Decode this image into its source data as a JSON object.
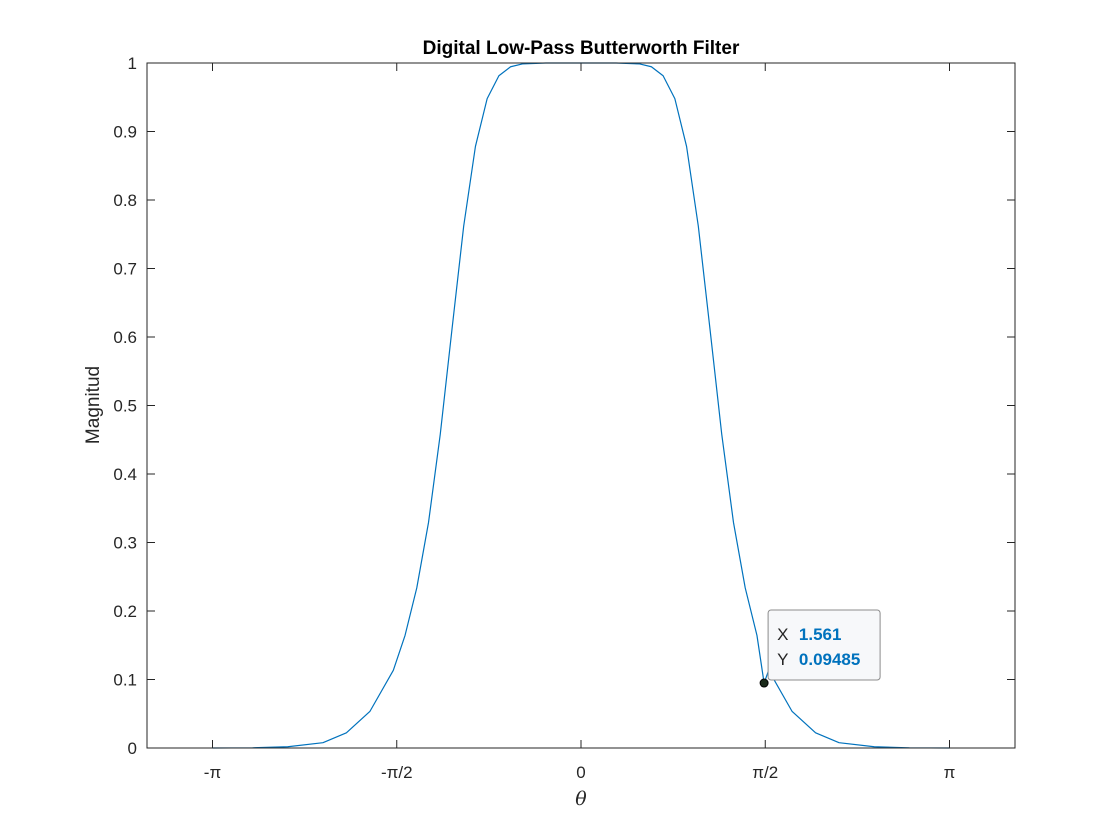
{
  "chart_data": {
    "type": "line",
    "title": "Digital Low-Pass Butterworth Filter",
    "xlabel": "θ",
    "ylabel": "Magnitud",
    "xlim": [
      -3.7,
      3.7
    ],
    "ylim": [
      0,
      1
    ],
    "xticks": [
      {
        "value": -3.14159,
        "label": "-π"
      },
      {
        "value": -1.5708,
        "label": "-π/2"
      },
      {
        "value": 0,
        "label": "0"
      },
      {
        "value": 1.5708,
        "label": "π/2"
      },
      {
        "value": 3.14159,
        "label": "π"
      }
    ],
    "yticks": [
      {
        "value": 0,
        "label": "0"
      },
      {
        "value": 0.1,
        "label": "0.1"
      },
      {
        "value": 0.2,
        "label": "0.2"
      },
      {
        "value": 0.3,
        "label": "0.3"
      },
      {
        "value": 0.4,
        "label": "0.4"
      },
      {
        "value": 0.5,
        "label": "0.5"
      },
      {
        "value": 0.6,
        "label": "0.6"
      },
      {
        "value": 0.7,
        "label": "0.7"
      },
      {
        "value": 0.8,
        "label": "0.8"
      },
      {
        "value": 0.9,
        "label": "0.9"
      },
      {
        "value": 1,
        "label": "1"
      }
    ],
    "grid": false,
    "series": [
      {
        "color": "#0072BD",
        "x": [
          -3.1416,
          -2.8,
          -2.5,
          -2.2,
          -2.0,
          -1.8,
          -1.6,
          -1.5,
          -1.4,
          -1.3,
          -1.2,
          -1.1,
          -1.0,
          -0.9,
          -0.8,
          -0.7,
          -0.6,
          -0.5,
          -0.3,
          0,
          0.3,
          0.5,
          0.6,
          0.7,
          0.8,
          0.9,
          1.0,
          1.1,
          1.2,
          1.3,
          1.4,
          1.5,
          1.561,
          1.6,
          1.8,
          2.0,
          2.2,
          2.5,
          2.8,
          3.1416
        ],
        "y": [
          0.0,
          0.0003,
          0.0018,
          0.0078,
          0.0222,
          0.0533,
          0.1134,
          0.1644,
          0.2338,
          0.3292,
          0.4578,
          0.6111,
          0.762,
          0.8782,
          0.948,
          0.9814,
          0.9945,
          0.9986,
          1.0,
          1.0,
          1.0,
          0.9986,
          0.9945,
          0.9814,
          0.948,
          0.8782,
          0.762,
          0.6111,
          0.4578,
          0.3292,
          0.2338,
          0.1644,
          0.09485,
          0.1134,
          0.0533,
          0.0222,
          0.0078,
          0.0018,
          0.0003,
          0.0
        ]
      }
    ],
    "datatip": {
      "x": 1.561,
      "y": 0.09485,
      "x_key": "X",
      "x_label": "1.561",
      "y_key": "Y",
      "y_label": "0.09485"
    }
  }
}
